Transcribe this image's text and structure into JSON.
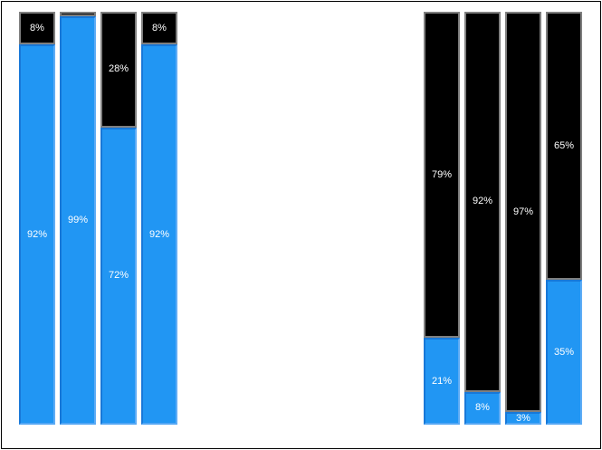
{
  "chart_data": {
    "type": "bar",
    "stacking": "percent",
    "orientation": "vertical",
    "title": "",
    "xlabel": "",
    "ylabel": "",
    "ylim": [
      0,
      100
    ],
    "grid": false,
    "legend": false,
    "series_names": [
      "blue",
      "black"
    ],
    "colors": {
      "blue_fill": "#2196F3",
      "black_fill": "#000000",
      "black_segment_border": "#7F7F7F",
      "label_text": "#FFFFFF",
      "background": "#FFFFFF",
      "frame_border": "#000000"
    },
    "groups": [
      {
        "id": "left",
        "bars": [
          {
            "segments": [
              {
                "series": "black",
                "value": 8,
                "label": "8%"
              },
              {
                "series": "blue",
                "value": 92,
                "label": "92%"
              }
            ]
          },
          {
            "segments": [
              {
                "series": "black",
                "value": 1,
                "label": ""
              },
              {
                "series": "blue",
                "value": 99,
                "label": "99%"
              }
            ]
          },
          {
            "segments": [
              {
                "series": "black",
                "value": 28,
                "label": "28%"
              },
              {
                "series": "blue",
                "value": 72,
                "label": "72%"
              }
            ]
          },
          {
            "segments": [
              {
                "series": "black",
                "value": 8,
                "label": "8%"
              },
              {
                "series": "blue",
                "value": 92,
                "label": "92%"
              }
            ]
          }
        ]
      },
      {
        "id": "right",
        "bars": [
          {
            "segments": [
              {
                "series": "black",
                "value": 79,
                "label": "79%"
              },
              {
                "series": "blue",
                "value": 21,
                "label": "21%"
              }
            ]
          },
          {
            "segments": [
              {
                "series": "black",
                "value": 92,
                "label": "92%"
              },
              {
                "series": "blue",
                "value": 8,
                "label": "8%"
              }
            ]
          },
          {
            "segments": [
              {
                "series": "black",
                "value": 97,
                "label": "97%"
              },
              {
                "series": "blue",
                "value": 3,
                "label": "3%"
              }
            ]
          },
          {
            "segments": [
              {
                "series": "black",
                "value": 65,
                "label": "65%"
              },
              {
                "series": "blue",
                "value": 35,
                "label": "35%"
              }
            ]
          }
        ]
      }
    ]
  }
}
